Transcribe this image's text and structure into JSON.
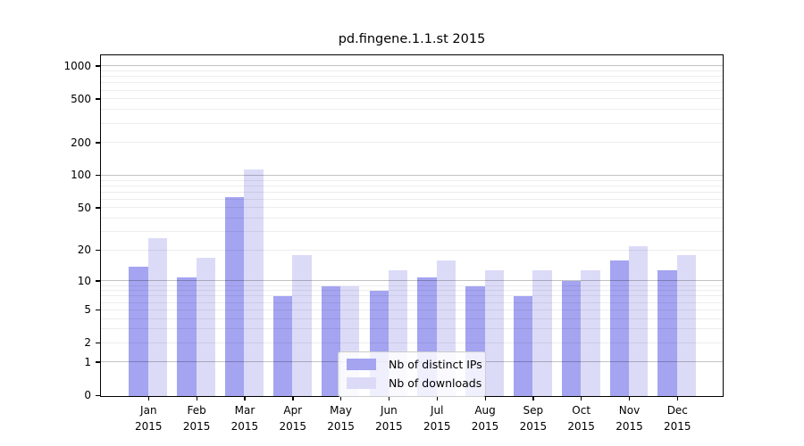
{
  "title": "pd.fingene.1.1.st 2015",
  "chart_data": {
    "type": "bar",
    "title": "pd.fingene.1.1.st 2015",
    "categories": [
      "Jan",
      "Feb",
      "Mar",
      "Apr",
      "May",
      "Jun",
      "Jul",
      "Aug",
      "Sep",
      "Oct",
      "Nov",
      "Dec"
    ],
    "year_label": "2015",
    "series": [
      {
        "name": "Nb of distinct IPs",
        "color": "#a4a4f1",
        "values": [
          14,
          11,
          63,
          7,
          9,
          8,
          11,
          9,
          7,
          10,
          16,
          13
        ]
      },
      {
        "name": "Nb of downloads",
        "color": "#dbdbf8",
        "values": [
          26,
          17,
          115,
          18,
          9,
          13,
          16,
          13,
          13,
          13,
          22,
          18
        ]
      }
    ],
    "xlabel": "",
    "ylabel": "",
    "y_scale": "log10(value+1)",
    "ylim": [
      0,
      1250
    ],
    "y_ticks": [
      0,
      1,
      2,
      5,
      10,
      20,
      50,
      100,
      200,
      500,
      1000
    ],
    "grid_major": [
      1,
      10,
      100,
      1000
    ],
    "grid_minor": [
      2,
      3,
      4,
      5,
      6,
      7,
      8,
      9,
      20,
      30,
      40,
      50,
      60,
      70,
      80,
      90,
      200,
      300,
      400,
      500,
      600,
      700,
      800,
      900
    ],
    "grid": "on",
    "legend_position": "bottom-center"
  }
}
